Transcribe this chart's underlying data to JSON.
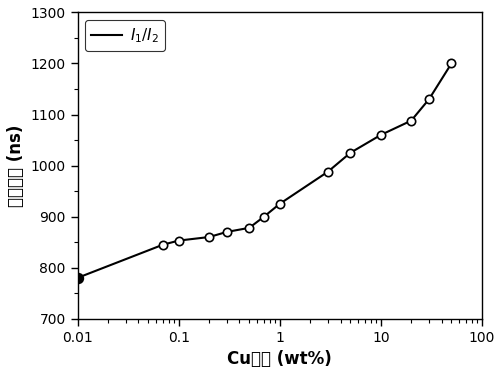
{
  "x": [
    0.01,
    0.07,
    0.1,
    0.2,
    0.3,
    0.5,
    0.7,
    1.0,
    3.0,
    5.0,
    10.0,
    20.0,
    30.0,
    50.0
  ],
  "y": [
    780,
    845,
    853,
    860,
    870,
    878,
    900,
    925,
    988,
    1025,
    1060,
    1088,
    1130,
    1200
  ],
  "open_markers": [
    1,
    2,
    3,
    4,
    5,
    6,
    7,
    8,
    9,
    10,
    11,
    12,
    13
  ],
  "filled_markers": [
    0
  ],
  "xlim_log": [
    -2,
    2
  ],
  "ylim": [
    700,
    1300
  ],
  "xlabel": "Cu含量 (wt%)",
  "ylabel": "最佳延迟 (ns)",
  "legend_label": "$\\mathit{I}_1/\\mathit{I}_2$",
  "line_color": "#000000",
  "marker_color": "#000000",
  "background_color": "#ffffff",
  "yticks": [
    700,
    800,
    900,
    1000,
    1100,
    1200,
    1300
  ],
  "xticks_major": [
    0.01,
    0.1,
    1,
    10,
    100
  ],
  "xtick_labels": [
    "0.01",
    "0.1",
    "1",
    "10",
    "100"
  ],
  "tick_fontsize": 10,
  "label_fontsize": 12,
  "legend_fontsize": 11,
  "linewidth": 1.5,
  "markersize_open": 6,
  "markersize_filled": 7
}
